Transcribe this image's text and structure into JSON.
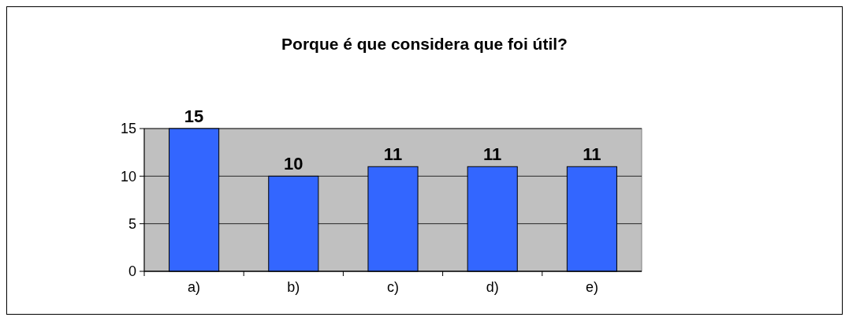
{
  "chart_data": {
    "type": "bar",
    "title": "Porque é que considera que foi útil?",
    "categories": [
      "a)",
      "b)",
      "c)",
      "d)",
      "e)"
    ],
    "values": [
      15,
      10,
      11,
      11,
      11
    ],
    "color": "#3366ff",
    "ylim": [
      0,
      15
    ],
    "yticks": [
      0,
      5,
      10,
      15
    ],
    "grid": "y",
    "data_labels": true
  }
}
